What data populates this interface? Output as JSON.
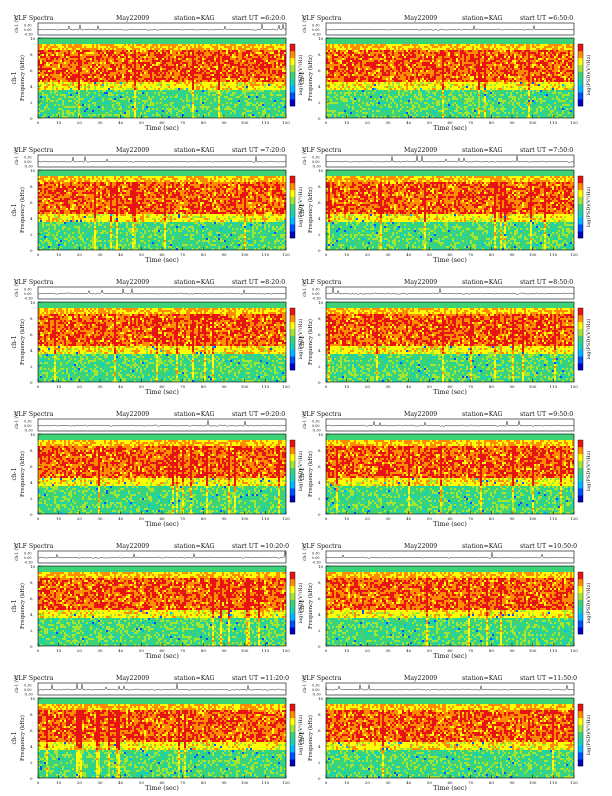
{
  "page": {
    "header_fragment": "VLF Spectra",
    "date": "May22009",
    "station": "station=KAG",
    "start_prefix": "start UT ="
  },
  "chart_data": [
    {
      "type": "heatmap",
      "ut": "6:20:0",
      "col": 0,
      "row": 0
    },
    {
      "type": "heatmap",
      "ut": "6:50:0",
      "col": 1,
      "row": 0
    },
    {
      "type": "heatmap",
      "ut": "7:20:0",
      "col": 0,
      "row": 1
    },
    {
      "type": "heatmap",
      "ut": "7:50:0",
      "col": 1,
      "row": 1
    },
    {
      "type": "heatmap",
      "ut": "8:20:0",
      "col": 0,
      "row": 2
    },
    {
      "type": "heatmap",
      "ut": "8:50:0",
      "col": 1,
      "row": 2
    },
    {
      "type": "heatmap",
      "ut": "9:20:0",
      "col": 0,
      "row": 3
    },
    {
      "type": "heatmap",
      "ut": "9:50:0",
      "col": 1,
      "row": 3
    },
    {
      "type": "heatmap",
      "ut": "10:20:0",
      "col": 0,
      "row": 4
    },
    {
      "type": "heatmap",
      "ut": "10:50:0",
      "col": 1,
      "row": 4
    },
    {
      "type": "heatmap",
      "ut": "11:20:0",
      "col": 0,
      "row": 5
    },
    {
      "type": "heatmap",
      "ut": "11:50:0",
      "col": 1,
      "row": 5
    }
  ],
  "axes": {
    "top_ylabel": "ch-1 (V)",
    "top_ticks": [
      "0.30",
      "0.00",
      "-0.30"
    ],
    "main_ylabel": "Frequency (kHz)",
    "main_ylabel_top": "ch-1",
    "y_ticks": [
      "0",
      "2",
      "4",
      "6",
      "8",
      "10"
    ],
    "x_ticks": [
      "0",
      "10",
      "20",
      "30",
      "40",
      "50",
      "60",
      "70",
      "80",
      "90",
      "100",
      "110",
      "120"
    ],
    "xlabel": "Time (sec)",
    "colorbar_label": "log(PSD)(V²/Hz)",
    "xlim": [
      0,
      120
    ],
    "ylim": [
      0,
      10
    ]
  },
  "colors": {
    "colormap": [
      "#0000c8",
      "#0050ff",
      "#00b4ff",
      "#18d2b4",
      "#3cd278",
      "#a0e632",
      "#ffff00",
      "#ff8c00",
      "#e81414"
    ]
  }
}
